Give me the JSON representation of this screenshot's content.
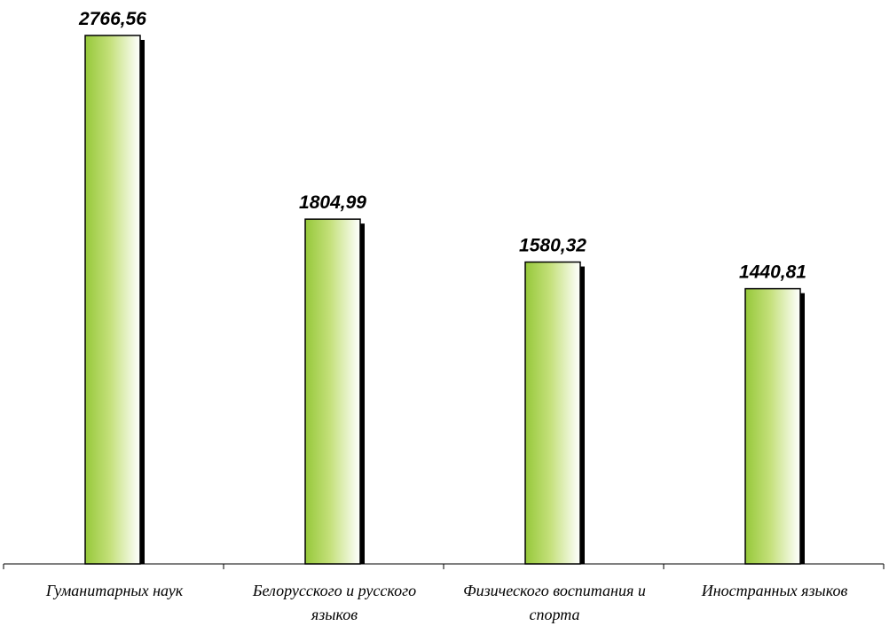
{
  "chart_data": {
    "type": "bar",
    "categories": [
      [
        "Гуманитарных наук"
      ],
      [
        "Белорусского и русского",
        "языков"
      ],
      [
        "Физического воспитания и",
        "спорта"
      ],
      [
        "Иностранных языков"
      ]
    ],
    "values": [
      2766.56,
      1804.99,
      1580.32,
      1440.81
    ],
    "value_labels": [
      "2766,56",
      "1804,99",
      "1580,32",
      "1440,81"
    ],
    "title": "",
    "xlabel": "",
    "ylabel": "",
    "ylim": [
      0,
      2766.56
    ],
    "grid": false,
    "legend": "none",
    "colors": {
      "bar_left": "#96c83a",
      "bar_mid": "#c4e07a",
      "bar_right": "#ffffff",
      "bar_outline": "#000000",
      "shadow": "#000000",
      "axis": "#000000"
    }
  }
}
